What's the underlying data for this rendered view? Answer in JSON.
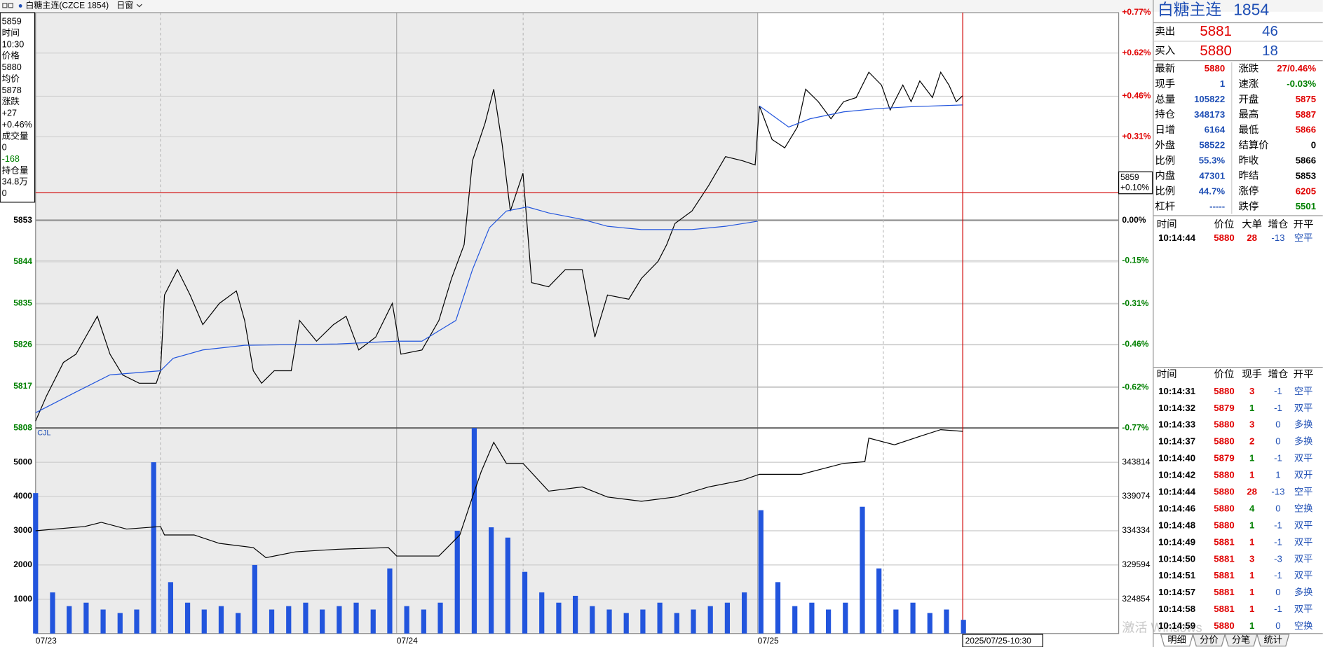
{
  "header": {
    "title": "白糖主连(CZCE 1854)",
    "period": "日窗"
  },
  "info_box": [
    "5859",
    "时间",
    "10:30",
    "价格",
    "5880",
    "均价",
    "5878",
    "涨跌",
    "+27",
    "+0.46%",
    "成交量",
    "0",
    "-168",
    "持仓量",
    "34.8万",
    "0"
  ],
  "chart_data": [
    {
      "type": "line",
      "xlim": [
        0,
        3
      ],
      "xticks": [
        {
          "value": 0,
          "label": "07/23"
        },
        {
          "value": 1,
          "label": "07/24"
        },
        {
          "value": 2,
          "label": "07/25"
        }
      ],
      "ylim": [
        5808,
        5898
      ],
      "yticks": [
        5808,
        5817,
        5826,
        5835,
        5844,
        5853
      ],
      "y2lim": [
        -0.77,
        0.77
      ],
      "y2ticks": [
        {
          "value": -0.77,
          "label": "-0.77%"
        },
        {
          "value": -0.62,
          "label": "-0.62%"
        },
        {
          "value": -0.46,
          "label": "-0.46%"
        },
        {
          "value": -0.31,
          "label": "-0.31%"
        },
        {
          "value": -0.15,
          "label": "-0.15%"
        },
        {
          "value": 0,
          "label": "0.00%"
        },
        {
          "value": 0.31,
          "label": "+0.31%"
        },
        {
          "value": 0.46,
          "label": "+0.46%"
        },
        {
          "value": 0.62,
          "label": "+0.62%"
        },
        {
          "value": 0.77,
          "label": "+0.77%"
        }
      ],
      "grid": true,
      "series": [
        {
          "color": "#000000",
          "x": [
            0,
            0.03,
            0.077,
            0.112,
            0.171,
            0.206,
            0.241,
            0.287,
            0.334,
            0.346,
            0.357,
            0.393,
            0.428,
            0.463,
            0.509,
            0.556,
            0.579,
            0.603,
            0.626,
            0.661,
            0.708,
            0.731,
            0.778,
            0.825,
            0.86,
            0.895,
            0.942,
            0.988,
            1.012,
            1.07,
            1.117,
            1.152,
            1.187,
            1.21,
            1.245,
            1.269,
            1.292,
            1.315,
            1.35,
            1.374,
            1.421,
            1.467,
            1.514,
            1.549,
            1.584,
            1.643,
            1.678,
            1.724,
            1.748,
            1.771,
            1.818,
            1.864,
            1.911,
            1.958,
            1.993,
            2.005,
            2.04,
            2.075,
            2.11,
            2.133,
            2.168,
            2.203,
            2.238,
            2.273,
            2.308,
            2.343,
            2.367,
            2.402,
            2.425,
            2.449,
            2.484,
            2.507,
            2.53,
            2.55,
            2.568
          ],
          "values": [
            5809.5,
            5814.9,
            5822.2,
            5824.0,
            5832.2,
            5824.0,
            5819.5,
            5817.7,
            5817.7,
            5820.4,
            5836.8,
            5842.3,
            5836.8,
            5830.4,
            5835.0,
            5837.7,
            5831.3,
            5820.4,
            5817.7,
            5820.4,
            5820.4,
            5831.3,
            5826.8,
            5830.4,
            5832.2,
            5824.9,
            5827.7,
            5835.0,
            5824.0,
            5824.9,
            5831.3,
            5840.4,
            5847.7,
            5865.9,
            5874.1,
            5881.4,
            5869.6,
            5855.0,
            5863.2,
            5839.5,
            5838.6,
            5842.3,
            5842.3,
            5827.7,
            5836.8,
            5835.9,
            5840.4,
            5844.1,
            5847.7,
            5852.3,
            5855.0,
            5860.5,
            5866.8,
            5865.9,
            5865.0,
            5877.8,
            5870.5,
            5868.7,
            5873.2,
            5881.4,
            5878.7,
            5875.0,
            5878.7,
            5879.6,
            5885.1,
            5882.3,
            5876.9,
            5882.3,
            5878.7,
            5883.2,
            5879.6,
            5885.1,
            5882.3,
            5878.7,
            5880
          ]
        },
        {
          "color": "#2255dd",
          "x": [
            0,
            0.112,
            0.206,
            0.346,
            0.381,
            0.463,
            0.579,
            0.836,
            1.0,
            1.07,
            1.164,
            1.21,
            1.257,
            1.304,
            1.362,
            1.421,
            1.514,
            1.584,
            1.678,
            1.818,
            1.911,
            2.0,
            2.002,
            2.005,
            2.086,
            2.145,
            2.238,
            2.332,
            2.425,
            2.568
          ],
          "values": [
            5811.3,
            5815.8,
            5819.5,
            5820.4,
            5823.1,
            5824.9,
            5825.9,
            5826.2,
            5826.8,
            5826.8,
            5831.3,
            5842.3,
            5851.4,
            5855.0,
            5855.9,
            5854.6,
            5853.2,
            5851.7,
            5851.0,
            5851.0,
            5851.7,
            5852.8,
            null,
            5877.8,
            5873.2,
            5875.0,
            5876.5,
            5877.2,
            5877.6,
            5878.0
          ]
        }
      ]
    },
    {
      "type": "bar",
      "label": "CJL",
      "xlim": [
        0,
        3
      ],
      "ylim": [
        0,
        6000
      ],
      "yticks": [
        1000,
        2000,
        3000,
        4000,
        5000
      ],
      "y2lim": [
        320114,
        348554
      ],
      "y2ticks": [
        324854,
        329594,
        334334,
        339074,
        343814
      ],
      "grid": true,
      "series": [
        {
          "type": "bar",
          "color": "#2255dd",
          "x": [
            0,
            0.047,
            0.093,
            0.14,
            0.187,
            0.234,
            0.28,
            0.327,
            0.374,
            0.421,
            0.467,
            0.514,
            0.561,
            0.607,
            0.654,
            0.701,
            0.748,
            0.794,
            0.841,
            0.888,
            0.935,
            0.981,
            1.028,
            1.075,
            1.121,
            1.168,
            1.215,
            1.262,
            1.308,
            1.355,
            1.402,
            1.449,
            1.495,
            1.542,
            1.589,
            1.636,
            1.682,
            1.729,
            1.776,
            1.822,
            1.869,
            1.916,
            1.963,
            2.009,
            2.056,
            2.103,
            2.15,
            2.196,
            2.243,
            2.29,
            2.336,
            2.383,
            2.43,
            2.477,
            2.523,
            2.57
          ],
          "values": [
            4100,
            1200,
            800,
            900,
            700,
            600,
            700,
            5000,
            1500,
            900,
            700,
            800,
            600,
            2000,
            700,
            800,
            900,
            700,
            800,
            900,
            700,
            1900,
            800,
            700,
            900,
            3000,
            6000,
            3100,
            2800,
            1800,
            1200,
            900,
            1100,
            800,
            700,
            600,
            700,
            900,
            600,
            700,
            800,
            900,
            1200,
            3600,
            1500,
            800,
            900,
            700,
            900,
            3700,
            1900,
            700,
            900,
            600,
            700,
            400
          ]
        },
        {
          "type": "line",
          "axis": "y2",
          "color": "#000000",
          "x": [
            0,
            0.136,
            0.182,
            0.252,
            0.346,
            0.357,
            0.439,
            0.509,
            0.603,
            0.638,
            0.72,
            0.836,
            0.977,
            1.0,
            1.023,
            1.117,
            1.175,
            1.21,
            1.234,
            1.269,
            1.304,
            1.35,
            1.421,
            1.514,
            1.584,
            1.678,
            1.771,
            1.864,
            1.958,
            2.005,
            2.121,
            2.238,
            2.297,
            2.308,
            2.379,
            2.449,
            2.507,
            2.568
          ],
          "values": [
            334334,
            334917,
            335500,
            334567,
            334917,
            333752,
            333752,
            332586,
            332003,
            330604,
            331420,
            331770,
            332003,
            330838,
            330838,
            330838,
            333752,
            338997,
            342494,
            346573,
            343659,
            343659,
            339813,
            340395,
            338997,
            338414,
            338997,
            340395,
            341328,
            342144,
            342144,
            343659,
            343892,
            347156,
            346223,
            347389,
            348322,
            348088
          ]
        }
      ]
    }
  ],
  "cursor": {
    "x": 2.568,
    "value": 5859,
    "pct": {
      "value": 0.1,
      "label": "+0.10%"
    },
    "time_label": "2025/07/25-10:30"
  },
  "quote_panel": {
    "name": "白糖主连",
    "code": "1854",
    "book": [
      [
        "卖出",
        "5881",
        "46"
      ],
      [
        "买入",
        "5880",
        "18"
      ]
    ],
    "stats": [
      [
        "最新",
        "5880",
        "涨跌",
        "27/0.46%"
      ],
      [
        "现手",
        "1",
        "速涨",
        "-0.03%"
      ],
      [
        "总量",
        "105822",
        "开盘",
        "5875"
      ],
      [
        "持仓",
        "348173",
        "最高",
        "5887"
      ],
      [
        "日增",
        "6164",
        "最低",
        "5866"
      ],
      [
        "外盘",
        "58522",
        "结算价",
        "0"
      ],
      [
        "比例",
        "55.3%",
        "昨收",
        "5866"
      ],
      [
        "内盘",
        "47301",
        "昨结",
        "5853"
      ],
      [
        "比例",
        "44.7%",
        "涨停",
        "6205"
      ],
      [
        "杠杆",
        "-----",
        "跌停",
        "5501"
      ]
    ],
    "big_orders": {
      "header": [
        "时间",
        "价位",
        "大单",
        "增仓",
        "开平"
      ],
      "rows": [
        [
          "10:14:44",
          "5880",
          "28",
          "-13",
          "空平"
        ]
      ]
    },
    "trades": {
      "header": [
        "时间",
        "价位",
        "现手",
        "增仓",
        "开平"
      ],
      "rows": [
        [
          "10:14:31",
          "5880",
          "3",
          "-1",
          "空平"
        ],
        [
          "10:14:32",
          "5879",
          "1",
          "-1",
          "双平"
        ],
        [
          "10:14:33",
          "5880",
          "3",
          "0",
          "多换"
        ],
        [
          "10:14:37",
          "5880",
          "2",
          "0",
          "多换"
        ],
        [
          "10:14:40",
          "5879",
          "1",
          "-1",
          "双平"
        ],
        [
          "10:14:42",
          "5880",
          "1",
          "1",
          "双开"
        ],
        [
          "10:14:44",
          "5880",
          "28",
          "-13",
          "空平"
        ],
        [
          "10:14:46",
          "5880",
          "4",
          "0",
          "空换"
        ],
        [
          "10:14:48",
          "5880",
          "1",
          "-1",
          "双平"
        ],
        [
          "10:14:49",
          "5881",
          "1",
          "-1",
          "双平"
        ],
        [
          "10:14:50",
          "5881",
          "3",
          "-3",
          "双平"
        ],
        [
          "10:14:51",
          "5881",
          "1",
          "-1",
          "双平"
        ],
        [
          "10:14:57",
          "5881",
          "1",
          "0",
          "多换"
        ],
        [
          "10:14:58",
          "5881",
          "1",
          "-1",
          "双平"
        ],
        [
          "10:14:59",
          "5880",
          "1",
          "0",
          "空换"
        ]
      ]
    },
    "tabs": [
      "明细",
      "分价",
      "分笔",
      "统计"
    ]
  },
  "watermark": "激活 Windows"
}
